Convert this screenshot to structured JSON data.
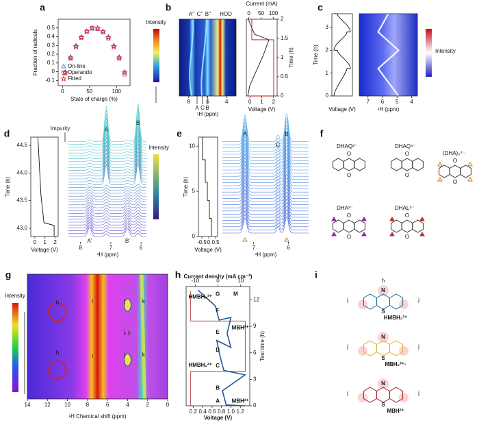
{
  "panels": {
    "a": {
      "label": "a",
      "type": "scatter",
      "xlabel": "State of charge (%)",
      "ylabel": "Fraction of radicals",
      "xlim": [
        -8,
        125
      ],
      "xticks": [
        0,
        50,
        100
      ],
      "ylim": [
        -0.16,
        0.6
      ],
      "yticks": [
        -0.1,
        0,
        0.1,
        0.2,
        0.3,
        0.4,
        0.5
      ],
      "x": [
        5,
        15,
        25,
        35,
        45,
        55,
        65,
        75,
        85,
        95,
        105,
        115
      ],
      "series": [
        {
          "name": "On-line",
          "color": "#4a90d9",
          "marker": "triangle",
          "values": [
            0.0,
            0.17,
            0.3,
            0.4,
            0.46,
            0.49,
            0.49,
            0.46,
            0.4,
            0.3,
            0.17,
            0.0
          ]
        },
        {
          "name": "Operando",
          "color": "#c8508c",
          "marker": "square",
          "values": [
            -0.02,
            0.15,
            0.28,
            0.39,
            0.46,
            0.5,
            0.49,
            0.45,
            0.38,
            0.28,
            0.15,
            -0.03
          ]
        },
        {
          "name": "Fitted",
          "color": "#d42a2a",
          "marker": "star",
          "values": [
            -0.01,
            0.16,
            0.29,
            0.39,
            0.46,
            0.5,
            0.5,
            0.46,
            0.39,
            0.29,
            0.16,
            -0.01
          ]
        }
      ]
    },
    "b": {
      "label": "b",
      "peaks": [
        "A''",
        "C''",
        "B''",
        "HOD"
      ],
      "bottom_peaks": [
        "A",
        "C",
        "B"
      ],
      "colorbar": "Intensity",
      "xlabel": "¹H (ppm)",
      "xlim": [
        9,
        3
      ],
      "xticks": [
        8,
        6,
        4
      ],
      "current_label": "Current (mA)",
      "current_lim": [
        -10,
        115
      ],
      "current_ticks": [
        0,
        50,
        100
      ],
      "voltage_label": "Voltage (V)",
      "voltage_lim": [
        -0.3,
        2.3
      ],
      "voltage_ticks": [
        0,
        1,
        2
      ],
      "time_label": "Time (h)",
      "time_lim": [
        0,
        2
      ],
      "time_ticks": [
        0,
        0.5,
        1,
        1.5,
        2
      ]
    },
    "c": {
      "label": "c",
      "time_label": "Time (h)",
      "time_lim": [
        0,
        3.6
      ],
      "time_ticks": [
        0,
        1,
        2,
        3
      ],
      "voltage_label": "Voltage (V)",
      "xlabel": "¹H (ppm)",
      "xlim": [
        7.6,
        3.6
      ],
      "xticks": [
        7,
        6,
        5,
        4
      ],
      "colorbar": "Intensity"
    },
    "d": {
      "label": "d",
      "impurity": "Impurity",
      "peaks": [
        "A",
        "B",
        "A'",
        "B'"
      ],
      "colorbar": "Intensity",
      "time_label": "Time (h)",
      "time_lim": [
        42.85,
        44.65
      ],
      "time_ticks": [
        {
          "value": 43,
          "label": "43.0"
        },
        43.5,
        {
          "value": 44,
          "label": "44.0"
        },
        44.5
      ],
      "voltage_label": "Voltage (V)",
      "voltage_lim": [
        -0.4,
        2.3
      ],
      "voltage_ticks": [
        0,
        1,
        2
      ],
      "xlabel": "¹H (ppm)",
      "xlim": [
        8.4,
        5.8
      ],
      "xticks": [
        8,
        7,
        6
      ]
    },
    "e": {
      "label": "e",
      "peaks": [
        "A",
        "B",
        "C"
      ],
      "colorbar": "Intensity",
      "time_label": "Time (h)",
      "time_lim": [
        0,
        11
      ],
      "time_ticks": [
        0,
        5,
        10
      ],
      "voltage_label": "Voltage (V)",
      "voltage_lim": [
        -0.75,
        0.65
      ],
      "voltage_ticks": [
        -0.5,
        0,
        0.5
      ],
      "xlabel": "¹H (ppm)",
      "xlim": [
        7.9,
        5.4
      ],
      "xticks": [
        7,
        6
      ]
    },
    "f": {
      "label": "f",
      "carbonyl": "O",
      "structures": [
        {
          "name": "DHAQ²⁻",
          "color": "#222222"
        },
        {
          "name": "DHAQ⁴⁻",
          "color": "#222222"
        },
        {
          "name": "(DHA)₂⁴⁻",
          "color": "#c87a1a"
        },
        {
          "name": "DHA²⁻",
          "color": "#8a2aa0"
        },
        {
          "name": "DHAL²⁻",
          "color": "#c02a2a"
        }
      ]
    },
    "g": {
      "label": "g",
      "colorbar": "Intensity",
      "xlabel": "¹H Chemical shift (ppm)",
      "xlim": [
        14,
        0
      ],
      "xticks": [
        14,
        12,
        10,
        8,
        6,
        4,
        2,
        0
      ],
      "annotations": [
        "h",
        "i",
        "j",
        "k",
        "j, j₂"
      ]
    },
    "h": {
      "label": "h",
      "current_label": "Current density (mA cm⁻²)",
      "current_lim": [
        -14,
        14
      ],
      "current_ticks": [
        -10,
        0,
        10
      ],
      "voltage_label": "Voltage (V)",
      "voltage_lim": [
        0.05,
        1.4
      ],
      "voltage_ticks": [
        0.2,
        0.4,
        0.6,
        0.8,
        {
          "value": 1,
          "label": "1.0"
        },
        1.2
      ],
      "time_label": "Test time (h)",
      "time_lim": [
        0,
        13.5
      ],
      "time_ticks": [
        0,
        3,
        6,
        9,
        12
      ],
      "states": [
        "A",
        "B",
        "C",
        "D",
        "E",
        "F",
        "G"
      ],
      "species": [
        "HMBH₂²⁺",
        "MBH²⁺"
      ],
      "top_box": "M"
    },
    "i": {
      "label": "i",
      "ring_top": "N",
      "ring_bottom": "S",
      "site_h": "h",
      "site_j": "j",
      "structures": [
        {
          "name": "HMBH₂²⁺",
          "color": "#1f6b8a"
        },
        {
          "name": "MBH₂²⁺·",
          "color": "#e0b020"
        },
        {
          "name": "MBH²⁺",
          "color": "#a01c24"
        }
      ]
    }
  }
}
